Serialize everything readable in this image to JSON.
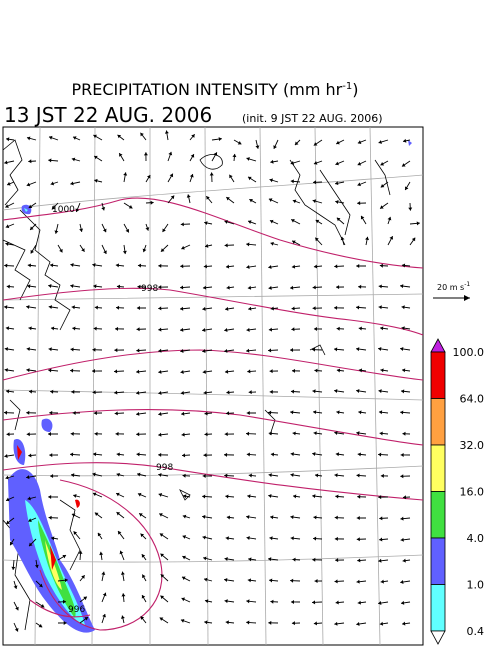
{
  "title": {
    "text": "PRECIPITATION INTENSITY (mm hr",
    "exponent": "-1",
    "close": ")"
  },
  "valid_time": "13 JST 22 AUG. 2006",
  "init_time": "(init. 9 JST 22 AUG. 2006)",
  "wind_scale": {
    "text": "20 m s",
    "exponent": "-1"
  },
  "isobar_labels": [
    "1000",
    "998",
    "998",
    "996"
  ],
  "colorbar": {
    "labels": [
      "100.0",
      "64.0",
      "32.0",
      "16.0",
      "4.0",
      "1.0",
      "0.4"
    ],
    "colors": [
      "#c020e0",
      "#f00000",
      "#ffa040",
      "#ffff60",
      "#40e040",
      "#6060ff",
      "#60ffff",
      "#ffffff"
    ]
  }
}
